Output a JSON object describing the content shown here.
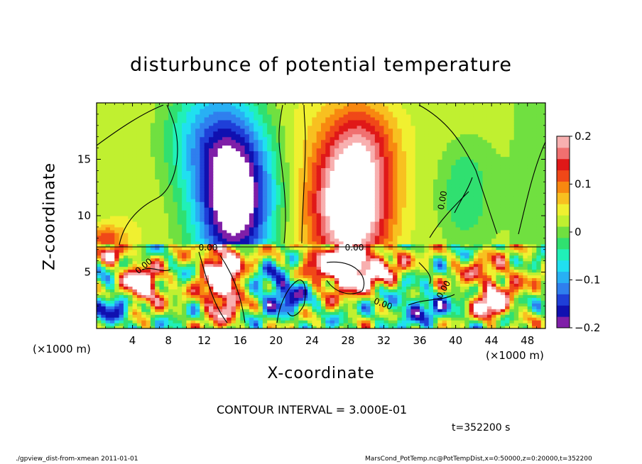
{
  "chart_data": {
    "type": "heatmap",
    "title": "disturbunce of potential temperature",
    "xlabel": "X-coordinate",
    "ylabel": "Z-coordinate",
    "x_unit": "(×1000 m)",
    "y_unit": "(×1000 m)",
    "xlim": [
      0,
      50
    ],
    "ylim": [
      0,
      20
    ],
    "x_ticks": [
      4,
      8,
      12,
      16,
      20,
      24,
      28,
      32,
      36,
      40,
      44,
      48
    ],
    "y_ticks": [
      5,
      10,
      15
    ],
    "colorbar": {
      "min": -0.2,
      "max": 0.2,
      "ticks": [
        {
          "value": 0.2,
          "label": "0.2"
        },
        {
          "value": 0.1,
          "label": "0.1"
        },
        {
          "value": 0,
          "label": "0"
        },
        {
          "value": -0.1,
          "label": "−0.1"
        },
        {
          "value": -0.2,
          "label": "−0.2"
        }
      ],
      "colors": [
        "#7f1fa8",
        "#1010b0",
        "#1f3fd8",
        "#2f7fee",
        "#28b0f4",
        "#20e0f0",
        "#20f0b8",
        "#30e070",
        "#70e040",
        "#c0f030",
        "#f0f030",
        "#f8c020",
        "#f88810",
        "#f04818",
        "#e01818",
        "#f07070",
        "#f8b0b0"
      ]
    },
    "contour_interval": "CONTOUR INTERVAL = 3.000E-01",
    "contour_labels": [
      "0.00",
      "0.00",
      "0.00",
      "0.00",
      "0.00",
      "0.00"
    ],
    "time_label": "t=352200 s",
    "footer_left": "./gpview_dist-from-xmean   2011-01-01",
    "footer_right": "MarsCond_PotTemp.nc@PotTempDist,x=0:50000,z=0:20000,t=352200"
  }
}
